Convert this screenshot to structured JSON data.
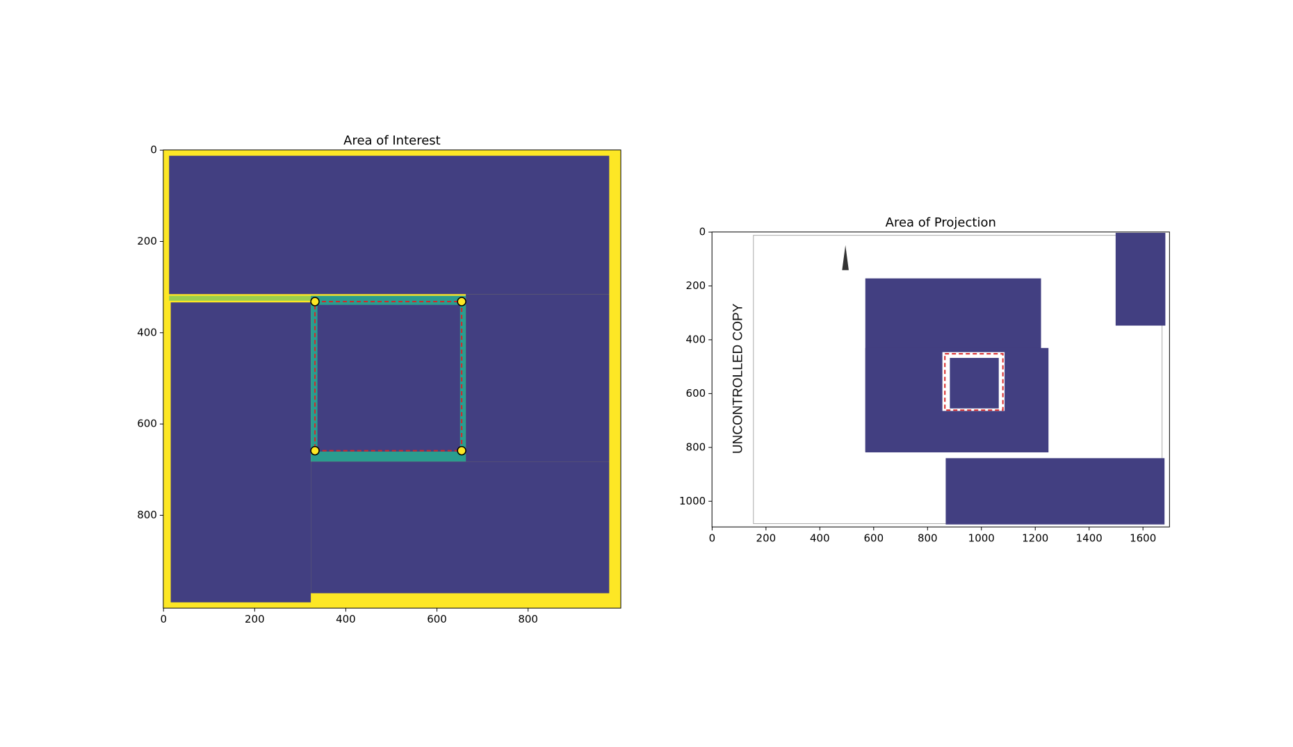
{
  "chart_data": [
    {
      "type": "image",
      "title": "Area of Interest",
      "xlim": [
        -0.5,
        1003.5
      ],
      "ylim": [
        1003.5,
        -0.5
      ],
      "xticks": [
        0,
        200,
        400,
        600,
        800
      ],
      "yticks": [
        0,
        200,
        400,
        600,
        800
      ]
    },
    {
      "type": "image",
      "title": "Area of Projection",
      "image_text": "UNCONTROLLED COPY",
      "xlim": [
        -0.5,
        1698.5
      ],
      "ylim": [
        1095.5,
        -0.5
      ],
      "xticks": [
        0,
        200,
        400,
        600,
        800,
        1000,
        1200,
        1400,
        1600
      ],
      "yticks": [
        0,
        200,
        400,
        600,
        800,
        1000
      ]
    }
  ]
}
